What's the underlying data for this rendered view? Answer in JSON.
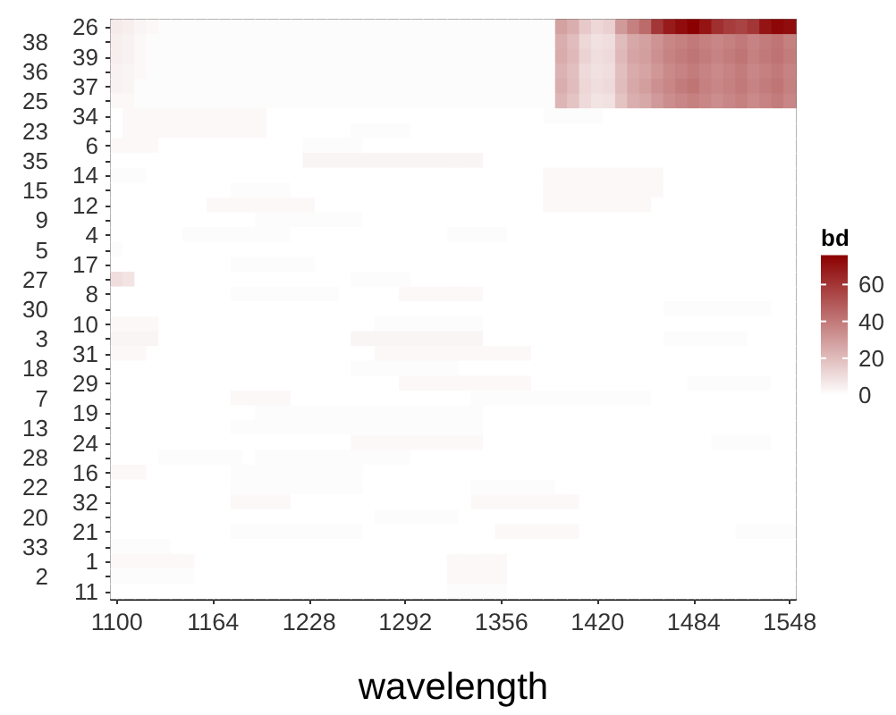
{
  "chart_data": {
    "type": "heatmap",
    "xlabel": "wavelength",
    "clabel": "bd",
    "clim": [
      0,
      76
    ],
    "cticks": [
      0,
      20,
      40,
      60
    ],
    "categories": [
      "1100",
      null,
      null,
      null,
      null,
      null,
      null,
      null,
      "1164",
      null,
      null,
      null,
      null,
      null,
      null,
      null,
      "1228",
      null,
      null,
      null,
      null,
      null,
      null,
      null,
      "1292",
      null,
      null,
      null,
      null,
      null,
      null,
      null,
      "1356",
      null,
      null,
      null,
      null,
      null,
      null,
      null,
      "1420",
      null,
      null,
      null,
      null,
      null,
      null,
      null,
      "1484",
      null,
      null,
      null,
      null,
      null,
      null,
      null,
      "1548"
    ],
    "y_categories": [
      "26",
      "38",
      "39",
      "36",
      "37",
      "25",
      "34",
      "23",
      "6",
      "35",
      "14",
      "15",
      "12",
      "9",
      "4",
      "5",
      "17",
      "27",
      "8",
      "30",
      "10",
      "3",
      "31",
      "18",
      "29",
      "7",
      "19",
      "13",
      "24",
      "28",
      "16",
      "22",
      "32",
      "20",
      "21",
      "33",
      "1",
      "2",
      "11"
    ],
    "cells": [
      [
        6,
        5,
        3,
        2,
        1,
        1,
        1,
        1,
        1,
        1,
        1,
        1,
        1,
        1,
        1,
        1,
        1,
        1,
        1,
        1,
        1,
        1,
        1,
        1,
        1,
        1,
        1,
        1,
        1,
        1,
        1,
        1,
        1,
        1,
        1,
        1,
        1,
        28,
        24,
        16,
        12,
        14,
        30,
        38,
        44,
        60,
        68,
        72,
        76,
        70,
        62,
        58,
        56,
        60,
        70,
        74,
        72
      ],
      [
        5,
        4,
        2,
        1,
        1,
        1,
        1,
        1,
        1,
        1,
        1,
        1,
        1,
        1,
        1,
        1,
        1,
        1,
        1,
        1,
        1,
        1,
        1,
        1,
        1,
        1,
        1,
        1,
        1,
        1,
        1,
        1,
        1,
        1,
        1,
        1,
        1,
        24,
        20,
        12,
        9,
        10,
        20,
        26,
        28,
        32,
        36,
        38,
        40,
        38,
        36,
        38,
        40,
        37,
        39,
        41,
        38
      ],
      [
        5,
        4,
        2,
        1,
        1,
        1,
        1,
        1,
        1,
        1,
        1,
        1,
        1,
        1,
        1,
        1,
        1,
        1,
        1,
        1,
        1,
        1,
        1,
        1,
        1,
        1,
        1,
        1,
        1,
        1,
        1,
        1,
        1,
        1,
        1,
        1,
        1,
        25,
        21,
        13,
        10,
        11,
        21,
        27,
        29,
        33,
        37,
        39,
        41,
        39,
        37,
        39,
        41,
        38,
        40,
        42,
        39
      ],
      [
        4,
        3,
        2,
        1,
        1,
        1,
        1,
        1,
        1,
        1,
        1,
        1,
        1,
        1,
        1,
        1,
        1,
        1,
        1,
        1,
        1,
        1,
        1,
        1,
        1,
        1,
        1,
        1,
        1,
        1,
        1,
        1,
        1,
        1,
        1,
        1,
        1,
        23,
        19,
        11,
        9,
        10,
        19,
        25,
        27,
        31,
        35,
        37,
        39,
        37,
        35,
        37,
        39,
        36,
        38,
        40,
        37
      ],
      [
        4,
        3,
        1,
        1,
        1,
        1,
        1,
        1,
        1,
        1,
        1,
        1,
        1,
        1,
        1,
        1,
        1,
        1,
        1,
        1,
        1,
        1,
        1,
        1,
        1,
        1,
        1,
        1,
        1,
        1,
        1,
        1,
        1,
        1,
        1,
        1,
        1,
        24,
        20,
        12,
        10,
        11,
        20,
        26,
        29,
        33,
        36,
        39,
        41,
        38,
        36,
        38,
        40,
        37,
        39,
        41,
        38
      ],
      [
        2,
        2,
        1,
        1,
        1,
        1,
        1,
        1,
        1,
        1,
        1,
        1,
        1,
        1,
        1,
        1,
        1,
        1,
        1,
        1,
        1,
        1,
        1,
        1,
        1,
        1,
        1,
        1,
        1,
        1,
        1,
        1,
        1,
        1,
        1,
        1,
        1,
        22,
        18,
        11,
        8,
        9,
        18,
        24,
        26,
        30,
        34,
        36,
        38,
        36,
        34,
        36,
        38,
        35,
        37,
        39,
        36
      ],
      [
        0,
        2,
        2,
        2,
        2,
        2,
        2,
        2,
        2,
        2,
        2,
        2,
        2,
        0,
        0,
        0,
        0,
        0,
        0,
        0,
        0,
        0,
        0,
        0,
        0,
        0,
        0,
        0,
        0,
        0,
        0,
        0,
        0,
        0,
        0,
        0,
        1,
        1,
        1,
        1,
        1,
        0,
        0,
        0,
        0,
        0,
        0,
        0,
        0,
        0,
        0,
        0,
        0,
        0,
        0,
        0,
        0
      ],
      [
        0,
        2,
        2,
        2,
        2,
        2,
        2,
        2,
        2,
        2,
        2,
        2,
        2,
        0,
        0,
        0,
        0,
        0,
        0,
        0,
        1,
        1,
        1,
        1,
        1,
        0,
        0,
        0,
        0,
        0,
        0,
        0,
        0,
        0,
        0,
        0,
        0,
        0,
        0,
        0,
        0,
        0,
        0,
        0,
        0,
        0,
        0,
        0,
        0,
        0,
        0,
        0,
        0,
        0,
        0,
        0,
        0
      ],
      [
        2,
        2,
        2,
        2,
        0,
        0,
        0,
        0,
        0,
        0,
        0,
        0,
        0,
        0,
        0,
        0,
        1,
        1,
        1,
        1,
        1,
        0,
        0,
        0,
        0,
        0,
        0,
        0,
        0,
        0,
        0,
        0,
        0,
        0,
        0,
        0,
        0,
        0,
        0,
        0,
        0,
        0,
        0,
        0,
        0,
        0,
        0,
        0,
        0,
        0,
        0,
        0,
        0,
        0,
        0,
        0,
        0
      ],
      [
        0,
        0,
        0,
        0,
        0,
        0,
        0,
        0,
        0,
        0,
        0,
        0,
        0,
        0,
        0,
        0,
        3,
        3,
        3,
        3,
        3,
        3,
        3,
        3,
        3,
        3,
        3,
        3,
        3,
        3,
        3,
        0,
        0,
        0,
        0,
        0,
        0,
        0,
        0,
        0,
        0,
        0,
        0,
        0,
        0,
        0,
        0,
        0,
        0,
        0,
        0,
        0,
        0,
        0,
        0,
        0,
        0
      ],
      [
        1,
        1,
        1,
        0,
        0,
        0,
        0,
        0,
        0,
        0,
        0,
        0,
        0,
        0,
        0,
        0,
        0,
        0,
        0,
        0,
        0,
        0,
        0,
        0,
        0,
        0,
        0,
        0,
        0,
        0,
        0,
        0,
        0,
        0,
        0,
        0,
        2,
        2,
        2,
        2,
        2,
        2,
        2,
        2,
        2,
        2,
        0,
        0,
        0,
        0,
        0,
        0,
        0,
        0,
        0,
        0,
        0
      ],
      [
        0,
        0,
        0,
        0,
        0,
        0,
        0,
        0,
        0,
        0,
        1,
        1,
        1,
        1,
        1,
        0,
        0,
        0,
        0,
        0,
        0,
        0,
        0,
        0,
        0,
        0,
        0,
        0,
        0,
        0,
        0,
        0,
        0,
        0,
        0,
        0,
        2,
        2,
        2,
        2,
        2,
        2,
        2,
        2,
        2,
        2,
        0,
        0,
        0,
        0,
        0,
        0,
        0,
        0,
        0,
        0,
        0
      ],
      [
        0,
        0,
        0,
        0,
        0,
        0,
        0,
        0,
        2,
        2,
        2,
        2,
        2,
        2,
        2,
        2,
        2,
        0,
        0,
        0,
        0,
        0,
        0,
        0,
        0,
        0,
        0,
        0,
        0,
        0,
        0,
        0,
        0,
        0,
        0,
        0,
        2,
        2,
        2,
        2,
        2,
        2,
        2,
        2,
        2,
        0,
        0,
        0,
        0,
        0,
        0,
        0,
        0,
        0,
        0,
        0,
        0
      ],
      [
        0,
        0,
        0,
        0,
        0,
        0,
        0,
        0,
        0,
        0,
        0,
        0,
        1,
        1,
        1,
        1,
        1,
        1,
        1,
        1,
        1,
        0,
        0,
        0,
        0,
        0,
        0,
        0,
        0,
        0,
        0,
        0,
        0,
        0,
        0,
        0,
        0,
        0,
        0,
        0,
        0,
        0,
        0,
        0,
        0,
        0,
        0,
        0,
        0,
        0,
        0,
        0,
        0,
        0,
        0,
        0,
        0
      ],
      [
        0,
        0,
        0,
        0,
        0,
        0,
        1,
        1,
        1,
        1,
        1,
        1,
        1,
        1,
        1,
        0,
        0,
        0,
        0,
        0,
        0,
        0,
        0,
        0,
        0,
        0,
        0,
        0,
        1,
        1,
        1,
        1,
        1,
        0,
        0,
        0,
        0,
        0,
        0,
        0,
        0,
        0,
        0,
        0,
        0,
        0,
        0,
        0,
        0,
        0,
        0,
        0,
        0,
        0,
        0,
        0,
        0
      ],
      [
        1,
        0,
        0,
        0,
        0,
        0,
        0,
        0,
        0,
        0,
        0,
        0,
        0,
        0,
        0,
        0,
        0,
        0,
        0,
        0,
        0,
        0,
        0,
        0,
        0,
        0,
        0,
        0,
        0,
        0,
        0,
        0,
        0,
        0,
        0,
        0,
        0,
        0,
        0,
        0,
        0,
        0,
        0,
        0,
        0,
        0,
        0,
        0,
        0,
        0,
        0,
        0,
        0,
        0,
        0,
        0,
        0
      ],
      [
        0,
        0,
        0,
        0,
        0,
        0,
        0,
        0,
        0,
        0,
        1,
        1,
        1,
        1,
        1,
        1,
        1,
        0,
        0,
        0,
        0,
        0,
        0,
        0,
        0,
        0,
        0,
        0,
        0,
        0,
        0,
        0,
        0,
        0,
        0,
        0,
        0,
        0,
        0,
        0,
        0,
        0,
        0,
        0,
        0,
        0,
        0,
        0,
        0,
        0,
        0,
        0,
        0,
        0,
        0,
        0,
        0
      ],
      [
        10,
        8,
        0,
        0,
        0,
        0,
        0,
        0,
        0,
        0,
        0,
        0,
        0,
        0,
        0,
        0,
        0,
        0,
        0,
        0,
        1,
        1,
        1,
        1,
        1,
        0,
        0,
        0,
        0,
        0,
        0,
        0,
        0,
        0,
        0,
        0,
        0,
        0,
        0,
        0,
        0,
        0,
        0,
        0,
        0,
        0,
        0,
        0,
        0,
        0,
        0,
        0,
        0,
        0,
        0,
        0,
        0
      ],
      [
        0,
        0,
        0,
        0,
        0,
        0,
        0,
        0,
        0,
        0,
        1,
        1,
        1,
        1,
        1,
        1,
        1,
        1,
        1,
        0,
        0,
        0,
        0,
        0,
        2,
        2,
        2,
        2,
        2,
        2,
        2,
        0,
        0,
        0,
        0,
        0,
        0,
        0,
        0,
        0,
        0,
        0,
        0,
        0,
        0,
        0,
        0,
        0,
        0,
        0,
        0,
        0,
        0,
        0,
        0,
        0,
        0
      ],
      [
        0,
        0,
        0,
        0,
        0,
        0,
        0,
        0,
        0,
        0,
        0,
        0,
        0,
        0,
        0,
        0,
        0,
        0,
        0,
        0,
        0,
        0,
        0,
        0,
        0,
        0,
        0,
        0,
        0,
        0,
        0,
        0,
        0,
        0,
        0,
        0,
        0,
        0,
        0,
        0,
        0,
        0,
        0,
        0,
        0,
        0,
        1,
        1,
        1,
        1,
        1,
        1,
        1,
        1,
        1,
        0,
        0
      ],
      [
        2,
        2,
        2,
        2,
        0,
        0,
        0,
        0,
        0,
        0,
        0,
        0,
        0,
        0,
        0,
        0,
        0,
        0,
        0,
        0,
        0,
        0,
        1,
        1,
        1,
        1,
        1,
        1,
        1,
        1,
        1,
        0,
        0,
        0,
        0,
        0,
        0,
        0,
        0,
        0,
        0,
        0,
        0,
        0,
        0,
        0,
        0,
        0,
        0,
        0,
        0,
        0,
        0,
        0,
        0,
        0,
        0
      ],
      [
        3,
        3,
        3,
        3,
        0,
        0,
        0,
        0,
        0,
        0,
        0,
        0,
        0,
        0,
        0,
        0,
        0,
        0,
        0,
        0,
        3,
        3,
        3,
        3,
        3,
        3,
        3,
        3,
        3,
        3,
        3,
        0,
        0,
        0,
        0,
        0,
        0,
        0,
        0,
        0,
        0,
        0,
        0,
        0,
        0,
        0,
        1,
        1,
        1,
        1,
        1,
        1,
        1,
        0,
        0,
        0,
        0
      ],
      [
        2,
        2,
        2,
        0,
        0,
        0,
        0,
        0,
        0,
        0,
        0,
        0,
        0,
        0,
        0,
        0,
        0,
        0,
        0,
        0,
        0,
        0,
        2,
        2,
        2,
        2,
        2,
        2,
        2,
        2,
        2,
        2,
        2,
        2,
        2,
        0,
        0,
        0,
        0,
        0,
        0,
        0,
        0,
        0,
        0,
        0,
        0,
        0,
        0,
        0,
        0,
        0,
        0,
        0,
        0,
        0,
        0
      ],
      [
        0,
        0,
        0,
        0,
        0,
        0,
        0,
        0,
        0,
        0,
        0,
        0,
        0,
        0,
        0,
        0,
        0,
        0,
        0,
        0,
        1,
        1,
        1,
        1,
        1,
        1,
        1,
        1,
        1,
        0,
        0,
        0,
        0,
        0,
        0,
        0,
        0,
        0,
        0,
        0,
        0,
        0,
        0,
        0,
        0,
        0,
        0,
        0,
        0,
        0,
        0,
        0,
        0,
        0,
        0,
        0,
        0
      ],
      [
        0,
        0,
        0,
        0,
        0,
        0,
        0,
        0,
        0,
        0,
        0,
        0,
        0,
        0,
        0,
        0,
        0,
        0,
        0,
        0,
        0,
        0,
        0,
        0,
        2,
        2,
        2,
        2,
        2,
        2,
        2,
        2,
        2,
        2,
        2,
        0,
        0,
        0,
        0,
        0,
        0,
        0,
        0,
        0,
        0,
        0,
        0,
        0,
        1,
        1,
        1,
        1,
        1,
        1,
        1,
        0,
        0
      ],
      [
        0,
        0,
        0,
        0,
        0,
        0,
        0,
        0,
        0,
        0,
        2,
        2,
        2,
        2,
        2,
        0,
        0,
        0,
        0,
        0,
        0,
        0,
        0,
        0,
        0,
        0,
        0,
        0,
        0,
        0,
        1,
        1,
        1,
        1,
        1,
        1,
        1,
        1,
        1,
        1,
        1,
        1,
        1,
        1,
        1,
        0,
        0,
        0,
        0,
        0,
        0,
        0,
        0,
        0,
        0,
        0,
        0
      ],
      [
        0,
        0,
        0,
        0,
        0,
        0,
        0,
        0,
        0,
        0,
        0,
        0,
        1,
        1,
        1,
        1,
        1,
        1,
        1,
        1,
        1,
        1,
        1,
        1,
        1,
        1,
        1,
        1,
        1,
        1,
        1,
        0,
        0,
        0,
        0,
        0,
        0,
        0,
        0,
        0,
        0,
        0,
        0,
        0,
        0,
        0,
        0,
        0,
        0,
        0,
        0,
        0,
        0,
        0,
        0,
        0,
        0
      ],
      [
        0,
        0,
        0,
        0,
        0,
        0,
        0,
        0,
        0,
        0,
        1,
        1,
        1,
        1,
        1,
        1,
        1,
        1,
        1,
        1,
        1,
        1,
        1,
        1,
        1,
        1,
        1,
        1,
        1,
        1,
        1,
        0,
        0,
        0,
        0,
        0,
        0,
        0,
        0,
        0,
        0,
        0,
        0,
        0,
        0,
        0,
        0,
        0,
        0,
        0,
        0,
        0,
        0,
        0,
        0,
        0,
        0
      ],
      [
        0,
        0,
        0,
        0,
        0,
        0,
        0,
        0,
        0,
        0,
        0,
        0,
        0,
        0,
        0,
        0,
        0,
        0,
        0,
        0,
        2,
        2,
        2,
        2,
        2,
        2,
        2,
        2,
        2,
        2,
        2,
        0,
        0,
        0,
        0,
        0,
        0,
        0,
        0,
        0,
        0,
        0,
        0,
        0,
        0,
        0,
        0,
        0,
        0,
        0,
        1,
        1,
        1,
        1,
        1,
        0,
        0
      ],
      [
        0,
        0,
        0,
        0,
        1,
        1,
        1,
        1,
        1,
        1,
        1,
        0,
        1,
        1,
        1,
        1,
        1,
        1,
        1,
        1,
        1,
        1,
        1,
        1,
        1,
        0,
        0,
        0,
        0,
        0,
        0,
        0,
        0,
        0,
        0,
        0,
        0,
        0,
        0,
        0,
        0,
        0,
        0,
        0,
        0,
        0,
        0,
        0,
        0,
        0,
        0,
        0,
        0,
        0,
        0,
        0,
        0
      ],
      [
        2,
        2,
        2,
        0,
        0,
        0,
        0,
        0,
        0,
        0,
        1,
        1,
        1,
        1,
        1,
        1,
        1,
        1,
        1,
        1,
        1,
        0,
        0,
        0,
        0,
        0,
        0,
        0,
        0,
        0,
        0,
        0,
        0,
        0,
        0,
        0,
        0,
        0,
        0,
        0,
        0,
        0,
        0,
        0,
        0,
        0,
        0,
        0,
        0,
        0,
        0,
        0,
        0,
        0,
        0,
        0,
        0
      ],
      [
        0,
        0,
        0,
        0,
        0,
        0,
        0,
        0,
        0,
        0,
        1,
        1,
        1,
        1,
        1,
        1,
        1,
        1,
        1,
        1,
        1,
        0,
        0,
        0,
        0,
        0,
        0,
        0,
        0,
        0,
        1,
        1,
        1,
        1,
        1,
        1,
        1,
        0,
        0,
        0,
        0,
        0,
        0,
        0,
        0,
        0,
        0,
        0,
        0,
        0,
        0,
        0,
        0,
        0,
        0,
        0,
        0
      ],
      [
        0,
        0,
        0,
        0,
        0,
        0,
        0,
        0,
        0,
        0,
        2,
        2,
        2,
        2,
        2,
        0,
        0,
        0,
        0,
        0,
        0,
        0,
        0,
        0,
        0,
        0,
        0,
        0,
        0,
        0,
        2,
        2,
        2,
        2,
        2,
        2,
        2,
        2,
        2,
        0,
        0,
        0,
        0,
        0,
        0,
        0,
        0,
        0,
        0,
        0,
        0,
        0,
        0,
        0,
        0,
        0,
        0
      ],
      [
        0,
        0,
        0,
        0,
        0,
        0,
        0,
        0,
        0,
        0,
        0,
        0,
        0,
        0,
        0,
        0,
        0,
        0,
        0,
        0,
        0,
        0,
        1,
        1,
        1,
        1,
        1,
        1,
        1,
        0,
        0,
        0,
        0,
        0,
        0,
        0,
        0,
        0,
        0,
        0,
        0,
        0,
        0,
        0,
        0,
        0,
        0,
        0,
        0,
        0,
        0,
        0,
        0,
        0,
        0,
        0,
        0
      ],
      [
        0,
        0,
        0,
        0,
        0,
        0,
        0,
        0,
        0,
        0,
        1,
        1,
        1,
        1,
        1,
        1,
        1,
        1,
        1,
        1,
        1,
        0,
        0,
        0,
        0,
        0,
        0,
        0,
        0,
        0,
        0,
        0,
        2,
        2,
        2,
        2,
        2,
        2,
        2,
        0,
        0,
        0,
        0,
        0,
        0,
        0,
        0,
        0,
        0,
        0,
        0,
        0,
        1,
        1,
        1,
        1,
        1
      ],
      [
        1,
        1,
        1,
        1,
        1,
        0,
        0,
        0,
        0,
        0,
        0,
        0,
        0,
        0,
        0,
        0,
        0,
        0,
        0,
        0,
        0,
        0,
        0,
        0,
        0,
        0,
        0,
        0,
        0,
        0,
        0,
        0,
        0,
        0,
        0,
        0,
        0,
        0,
        0,
        0,
        0,
        0,
        0,
        0,
        0,
        0,
        0,
        0,
        0,
        0,
        0,
        0,
        0,
        0,
        0,
        0,
        0
      ],
      [
        2,
        2,
        2,
        2,
        2,
        2,
        2,
        0,
        0,
        0,
        0,
        0,
        0,
        0,
        0,
        0,
        0,
        0,
        0,
        0,
        0,
        0,
        0,
        0,
        0,
        0,
        0,
        0,
        2,
        2,
        2,
        2,
        2,
        0,
        0,
        0,
        0,
        0,
        0,
        0,
        0,
        0,
        0,
        0,
        0,
        0,
        0,
        0,
        0,
        0,
        0,
        0,
        0,
        0,
        0,
        0,
        0
      ],
      [
        1,
        1,
        1,
        1,
        1,
        1,
        1,
        0,
        0,
        0,
        0,
        0,
        0,
        0,
        0,
        0,
        0,
        0,
        0,
        0,
        0,
        0,
        0,
        0,
        0,
        0,
        0,
        0,
        2,
        2,
        2,
        2,
        2,
        0,
        0,
        0,
        0,
        0,
        0,
        0,
        0,
        0,
        0,
        0,
        0,
        0,
        0,
        0,
        0,
        0,
        0,
        0,
        0,
        0,
        0,
        0,
        0
      ],
      [
        0,
        0,
        0,
        0,
        0,
        0,
        0,
        0,
        0,
        0,
        0,
        0,
        0,
        0,
        0,
        0,
        0,
        0,
        0,
        0,
        0,
        0,
        0,
        0,
        0,
        0,
        0,
        0,
        1,
        1,
        1,
        1,
        1,
        0,
        0,
        0,
        0,
        0,
        0,
        0,
        0,
        0,
        0,
        0,
        0,
        0,
        0,
        0,
        0,
        0,
        0,
        0,
        0,
        0,
        0,
        0,
        0
      ]
    ]
  }
}
